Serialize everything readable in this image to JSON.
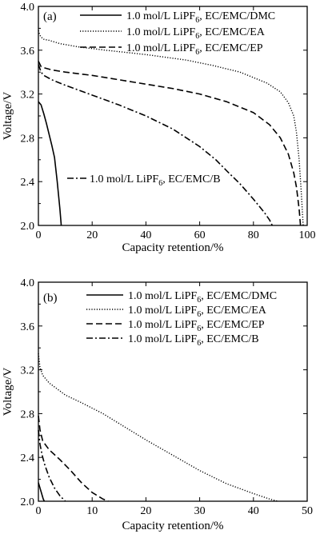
{
  "chart_data": [
    {
      "type": "line",
      "panel": "(a)",
      "xlabel": "Capacity retention/%",
      "ylabel": "Voltage/V",
      "xlim": [
        0,
        100
      ],
      "ylim": [
        2.0,
        4.0
      ],
      "xticks": [
        "0",
        "20",
        "40",
        "60",
        "80",
        "100"
      ],
      "yticks": [
        "2.0",
        "2.4",
        "2.8",
        "3.2",
        "3.6",
        "4.0"
      ],
      "legend": "top-right",
      "series": [
        {
          "name": "1.0 mol/L LiPF6, EC/EMC/DMC",
          "style": "solid",
          "x": [
            0,
            1,
            2,
            3,
            4,
            5,
            6,
            7,
            8,
            8.5
          ],
          "y": [
            3.13,
            3.1,
            3.02,
            2.93,
            2.83,
            2.73,
            2.62,
            2.4,
            2.15,
            2.0
          ]
        },
        {
          "name": "1.0 mol/L LiPF6, EC/EMC/EA",
          "style": "dotted",
          "x": [
            0,
            0.5,
            1,
            2,
            4,
            8,
            15,
            25,
            40,
            55,
            65,
            75,
            85,
            90,
            93,
            95,
            96,
            97,
            97.8,
            98.5
          ],
          "y": [
            3.78,
            3.74,
            3.72,
            3.7,
            3.69,
            3.66,
            3.63,
            3.6,
            3.56,
            3.51,
            3.46,
            3.4,
            3.3,
            3.22,
            3.12,
            3.0,
            2.85,
            2.6,
            2.3,
            2.0
          ]
        },
        {
          "name": "1.0 mol/L LiPF6, EC/EMC/EP",
          "style": "dashed",
          "x": [
            0,
            1,
            2,
            5,
            10,
            20,
            30,
            40,
            50,
            60,
            70,
            80,
            86,
            90,
            93,
            95,
            96,
            97,
            97.5
          ],
          "y": [
            3.5,
            3.45,
            3.44,
            3.42,
            3.4,
            3.37,
            3.33,
            3.29,
            3.25,
            3.2,
            3.13,
            3.03,
            2.92,
            2.8,
            2.65,
            2.48,
            2.35,
            2.15,
            2.0
          ]
        },
        {
          "name": "1.0 mol/L LiPF6, EC/EMC/B",
          "style": "dashdot",
          "x": [
            0,
            1,
            2,
            5,
            10,
            20,
            30,
            40,
            50,
            60,
            66,
            70,
            75,
            80,
            84,
            86,
            87
          ],
          "y": [
            3.47,
            3.4,
            3.37,
            3.33,
            3.28,
            3.19,
            3.1,
            3.0,
            2.88,
            2.72,
            2.6,
            2.5,
            2.38,
            2.24,
            2.12,
            2.05,
            2.0
          ]
        }
      ]
    },
    {
      "type": "line",
      "panel": "(b)",
      "xlabel": "Capacity retention/%",
      "ylabel": "Voltage/V",
      "xlim": [
        0,
        50
      ],
      "ylim": [
        2.0,
        4.0
      ],
      "xticks": [
        "0",
        "10",
        "20",
        "30",
        "40",
        "50"
      ],
      "yticks": [
        "2.0",
        "2.4",
        "2.8",
        "3.2",
        "3.6",
        "4.0"
      ],
      "legend": "top-right",
      "series": [
        {
          "name": "1.0 mol/L LiPF6, EC/EMC/DMC",
          "style": "solid",
          "x": [
            0,
            0.3,
            0.6,
            0.9,
            1.1
          ],
          "y": [
            2.17,
            2.12,
            2.07,
            2.02,
            2.0
          ]
        },
        {
          "name": "1.0 mol/L LiPF6, EC/EMC/EA",
          "style": "dotted",
          "x": [
            0,
            0.3,
            0.8,
            2,
            5,
            8,
            12,
            16,
            20,
            25,
            30,
            35,
            40,
            43,
            44.5
          ],
          "y": [
            3.35,
            3.22,
            3.15,
            3.08,
            2.97,
            2.9,
            2.8,
            2.68,
            2.56,
            2.42,
            2.28,
            2.16,
            2.07,
            2.02,
            2.0
          ]
        },
        {
          "name": "1.0 mol/L LiPF6, EC/EMC/EP",
          "style": "dashed",
          "x": [
            0,
            0.3,
            0.8,
            2,
            4,
            6,
            8,
            10,
            12,
            13
          ],
          "y": [
            2.78,
            2.65,
            2.55,
            2.47,
            2.38,
            2.28,
            2.17,
            2.08,
            2.02,
            2.0
          ]
        },
        {
          "name": "1.0 mol/L LiPF6, EC/EMC/B",
          "style": "dashdot",
          "x": [
            0,
            0.3,
            0.7,
            1.2,
            2,
            3,
            4,
            5
          ],
          "y": [
            2.65,
            2.52,
            2.42,
            2.33,
            2.22,
            2.12,
            2.05,
            2.0
          ]
        }
      ]
    }
  ],
  "legend_a": [
    {
      "prefix": "1.0 mol/L LiPF",
      "sub": "6",
      "suffix": ", EC/EMC/DMC"
    },
    {
      "prefix": "1.0 mol/L LiPF",
      "sub": "6",
      "suffix": ", EC/EMC/EA"
    },
    {
      "prefix": "1.0 mol/L LiPF",
      "sub": "6",
      "suffix": ", EC/EMC/EP"
    },
    {
      "prefix": "1.0 mol/L LiPF",
      "sub": "6",
      "suffix": ", EC/EMC/B"
    }
  ],
  "legend_b": [
    {
      "prefix": "1.0 mol/L LiPF",
      "sub": "6",
      "suffix": ", EC/EMC/DMC"
    },
    {
      "prefix": "1.0 mol/L LiPF",
      "sub": "6",
      "suffix": ", EC/EMC/EA"
    },
    {
      "prefix": "1.0 mol/L LiPF",
      "sub": "6",
      "suffix": ", EC/EMC/EP"
    },
    {
      "prefix": "1.0 mol/L LiPF",
      "sub": "6",
      "suffix": ", EC/EMC/B"
    }
  ]
}
